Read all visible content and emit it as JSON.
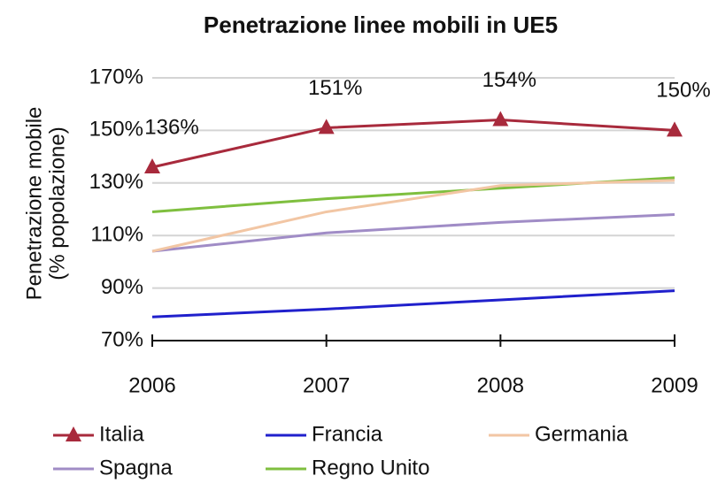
{
  "chart_data": {
    "type": "line",
    "title": "Penetrazione linee mobili in UE5",
    "ylabel": [
      "Penetrazione mobile",
      "(% popolazione)"
    ],
    "categories": [
      "2006",
      "2007",
      "2008",
      "2009"
    ],
    "ylim": [
      70,
      170
    ],
    "yticks": [
      {
        "value": 70,
        "label": "70%"
      },
      {
        "value": 90,
        "label": "90%"
      },
      {
        "value": 110,
        "label": "110%"
      },
      {
        "value": 130,
        "label": "130%"
      },
      {
        "value": 150,
        "label": "150%"
      },
      {
        "value": 170,
        "label": "170%"
      }
    ],
    "grid": true,
    "series": [
      {
        "name": "Italia",
        "color": "#a82a3c",
        "marker": "triangle",
        "values": [
          136,
          151,
          154,
          150
        ],
        "value_labels": [
          "136%",
          "151%",
          "154%",
          "150%"
        ]
      },
      {
        "name": "Francia",
        "color": "#2020cc",
        "values": [
          79,
          82,
          85.5,
          89
        ]
      },
      {
        "name": "Germania",
        "color": "#f2c6a4",
        "values": [
          104,
          119,
          129,
          131
        ]
      },
      {
        "name": "Spagna",
        "color": "#a08cc6",
        "values": [
          104,
          111,
          115,
          118
        ]
      },
      {
        "name": "Regno Unito",
        "color": "#7fbf3f",
        "values": [
          119,
          124,
          128,
          132
        ]
      }
    ]
  }
}
